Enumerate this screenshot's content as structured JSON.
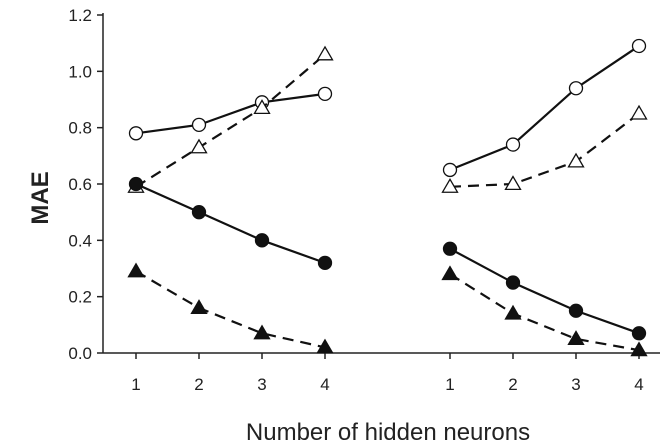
{
  "chart_data": {
    "type": "line",
    "xlabel": "Number of hidden neurons",
    "ylabel": "MAE",
    "ylim": [
      0,
      1.2
    ],
    "yticks": [
      "0.0",
      "0.2",
      "0.4",
      "0.6",
      "0.8",
      "1.0",
      "1.2"
    ],
    "grid": false,
    "panels": [
      {
        "x": [
          1,
          2,
          3,
          4
        ],
        "x_tick_labels": [
          "1",
          "2",
          "3",
          "4"
        ],
        "series": [
          {
            "marker": "open-circle",
            "line": "solid",
            "values": [
              0.78,
              0.81,
              0.89,
              0.92
            ]
          },
          {
            "marker": "open-triangle",
            "line": "dashed",
            "values": [
              0.59,
              0.73,
              0.87,
              1.06
            ]
          },
          {
            "marker": "filled-circle",
            "line": "solid",
            "values": [
              0.6,
              0.5,
              0.4,
              0.32
            ]
          },
          {
            "marker": "filled-triangle",
            "line": "dashed",
            "values": [
              0.29,
              0.16,
              0.07,
              0.02
            ]
          }
        ]
      },
      {
        "x": [
          1,
          2,
          3,
          4
        ],
        "x_tick_labels": [
          "1",
          "2",
          "3",
          "4"
        ],
        "series": [
          {
            "marker": "open-circle",
            "line": "solid",
            "values": [
              0.65,
              0.74,
              0.94,
              1.09
            ]
          },
          {
            "marker": "open-triangle",
            "line": "dashed",
            "values": [
              0.59,
              0.6,
              0.68,
              0.85
            ]
          },
          {
            "marker": "filled-circle",
            "line": "solid",
            "values": [
              0.37,
              0.25,
              0.15,
              0.07
            ]
          },
          {
            "marker": "filled-triangle",
            "line": "dashed",
            "values": [
              0.28,
              0.14,
              0.05,
              0.01
            ]
          }
        ]
      }
    ]
  }
}
